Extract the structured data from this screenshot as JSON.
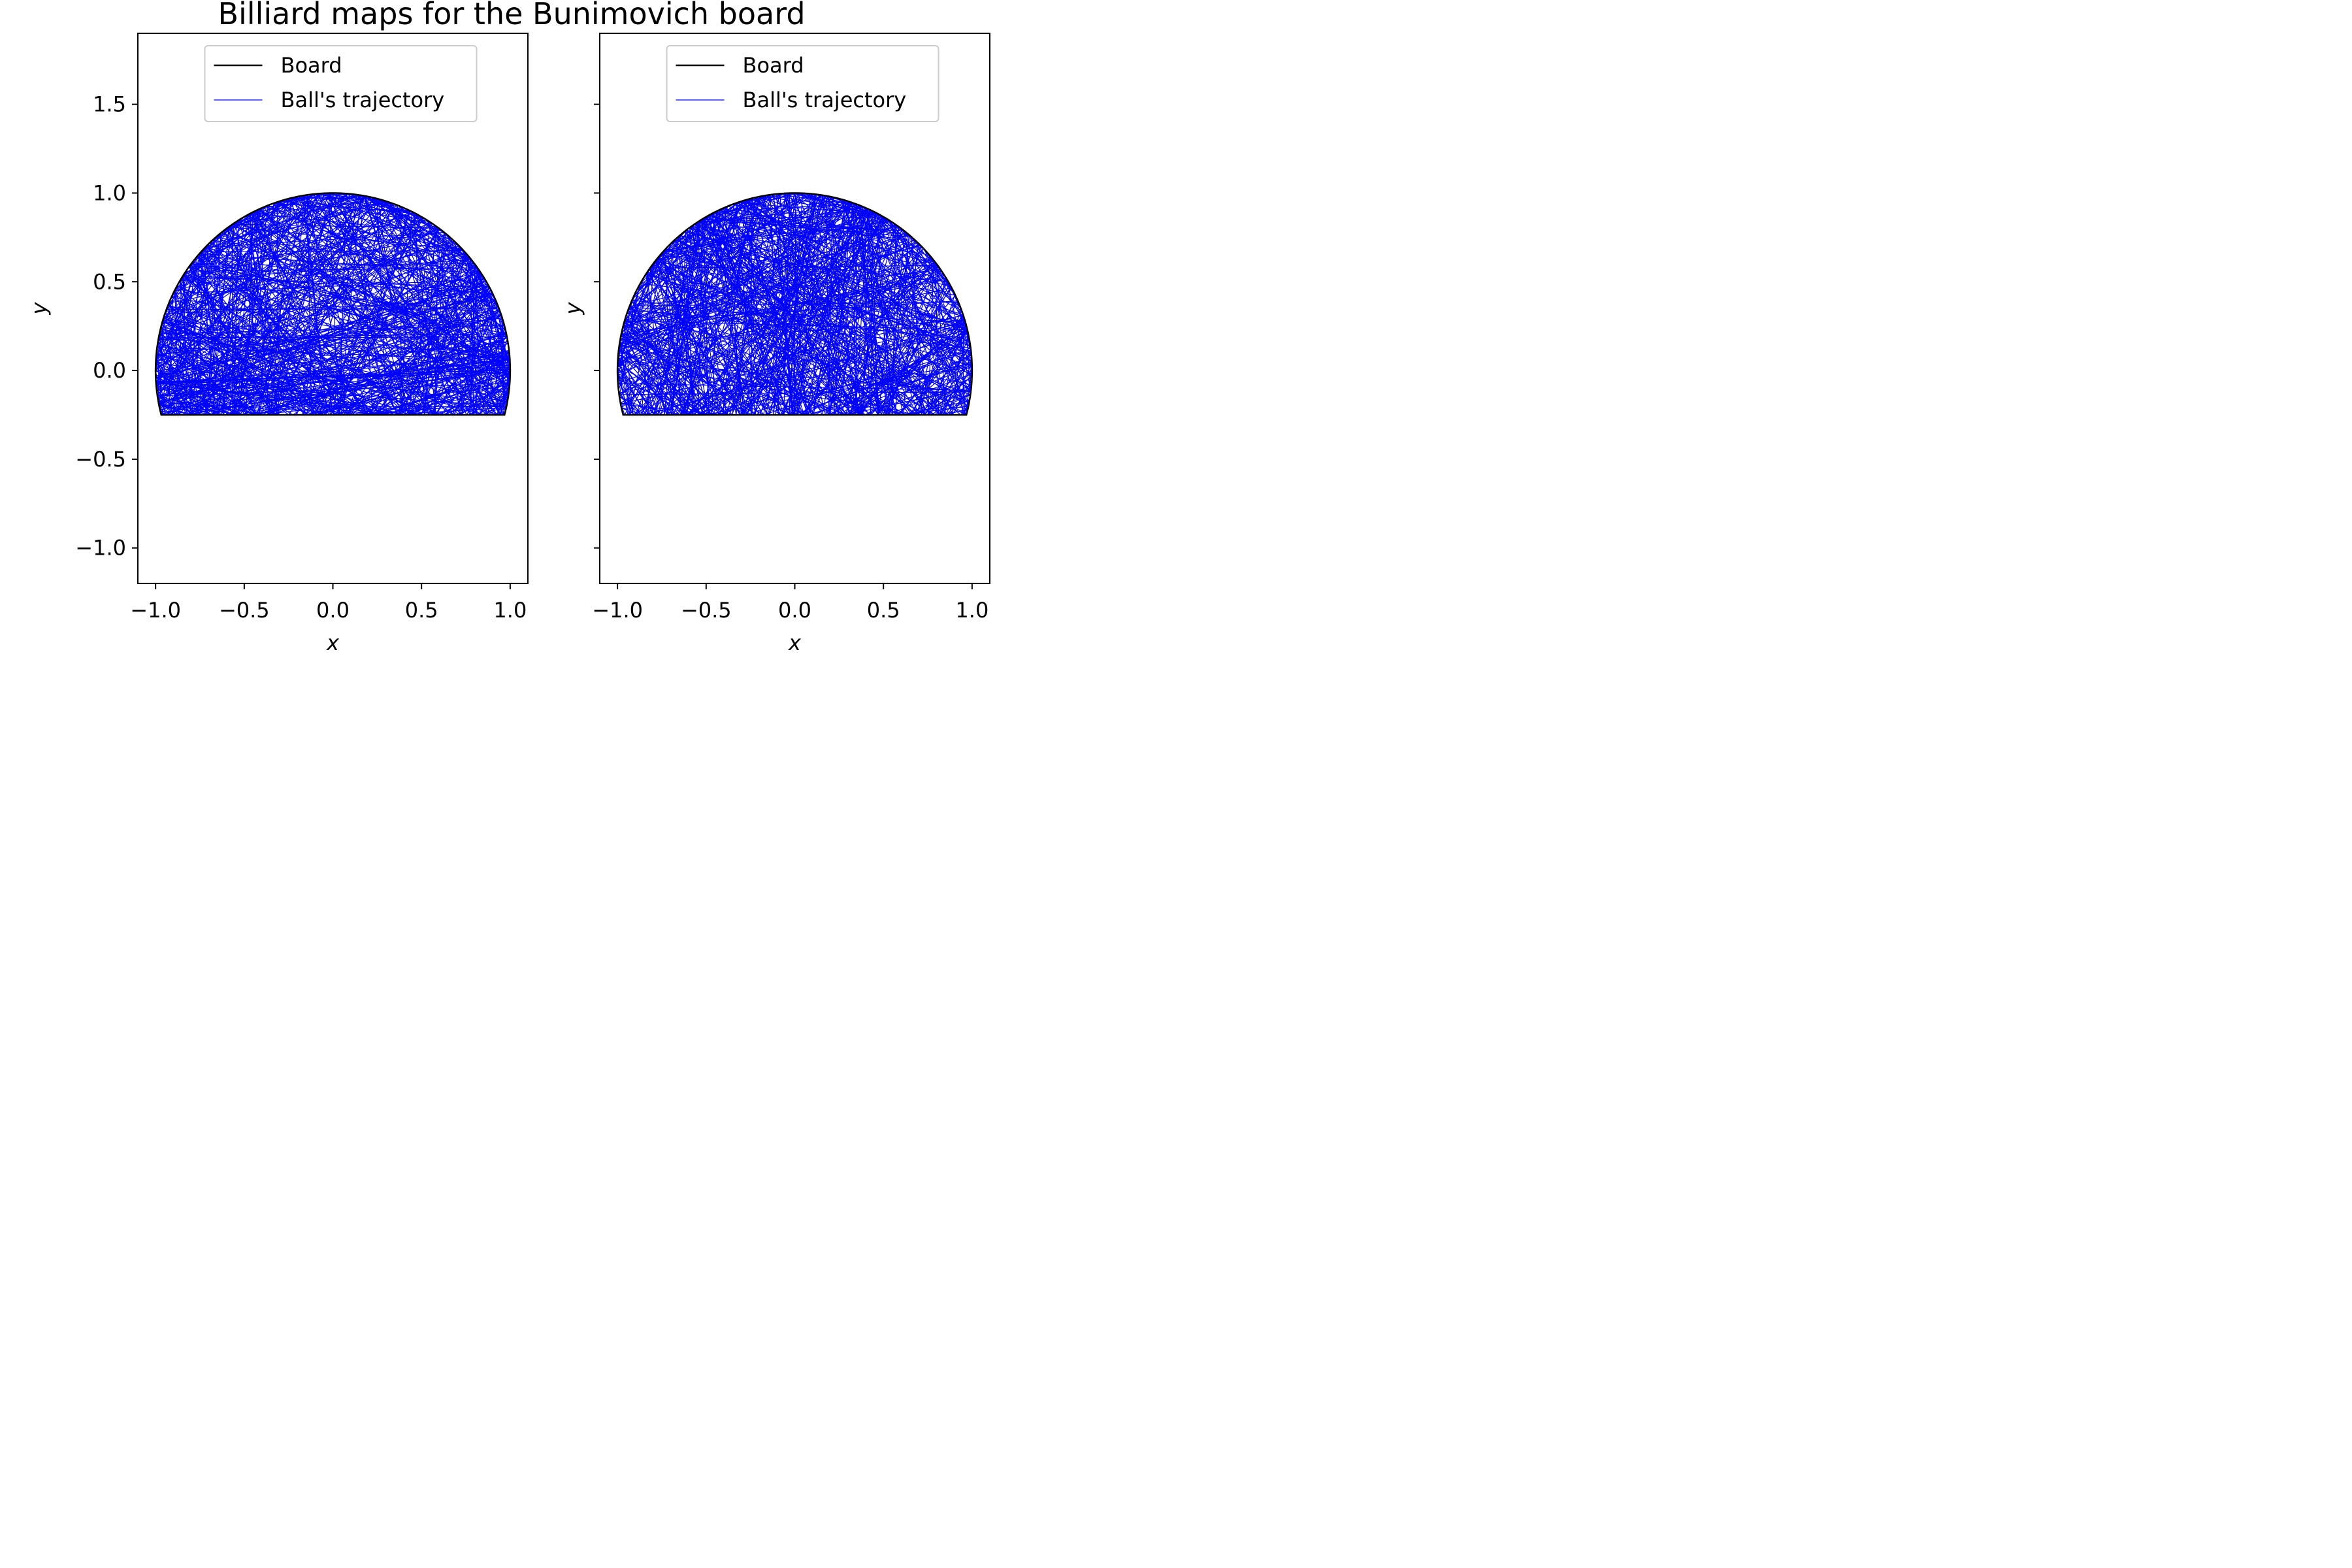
{
  "figure": {
    "title": "Billiard maps for the Bunimovich board"
  },
  "chart_data": [
    {
      "type": "line",
      "panel": "left",
      "xlabel": "x",
      "ylabel": "y",
      "xlim": [
        -1.1,
        1.1
      ],
      "ylim": [
        -1.2,
        1.9
      ],
      "x_ticks": [
        -1.0,
        -0.5,
        0.0,
        0.5,
        1.0
      ],
      "x_tick_labels": [
        "−1.0",
        "−0.5",
        "0.0",
        "0.5",
        "1.0"
      ],
      "y_ticks": [
        -1.0,
        -0.5,
        0.0,
        0.5,
        1.0,
        1.5
      ],
      "y_tick_labels": [
        "−1.0",
        "−0.5",
        "0.0",
        "0.5",
        "1.0",
        "1.5"
      ],
      "show_y_tick_labels": true,
      "grid": false,
      "legend": {
        "placement": "top-center",
        "entries": [
          "Board",
          "Ball's trajectory"
        ]
      },
      "board": {
        "shape": "circular segment",
        "radius": 1.0,
        "center": [
          0,
          0
        ],
        "cut_y": -0.25,
        "color": "#000000"
      },
      "trajectory": {
        "color": "#0000ff",
        "segments": 700,
        "seed": 7
      }
    },
    {
      "type": "line",
      "panel": "right",
      "xlabel": "x",
      "ylabel": "y",
      "xlim": [
        -1.1,
        1.1
      ],
      "ylim": [
        -1.2,
        1.9
      ],
      "x_ticks": [
        -1.0,
        -0.5,
        0.0,
        0.5,
        1.0
      ],
      "x_tick_labels": [
        "−1.0",
        "−0.5",
        "0.0",
        "0.5",
        "1.0"
      ],
      "y_ticks": [
        -1.0,
        -0.5,
        0.0,
        0.5,
        1.0,
        1.5
      ],
      "y_tick_labels": [],
      "show_y_tick_labels": false,
      "grid": false,
      "legend": {
        "placement": "top-center",
        "entries": [
          "Board",
          "Ball's trajectory"
        ]
      },
      "board": {
        "shape": "circular segment",
        "radius": 1.0,
        "center": [
          0,
          0
        ],
        "cut_y": -0.25,
        "color": "#000000"
      },
      "trajectory": {
        "color": "#0000ff",
        "segments": 700,
        "seed": 19
      }
    }
  ]
}
